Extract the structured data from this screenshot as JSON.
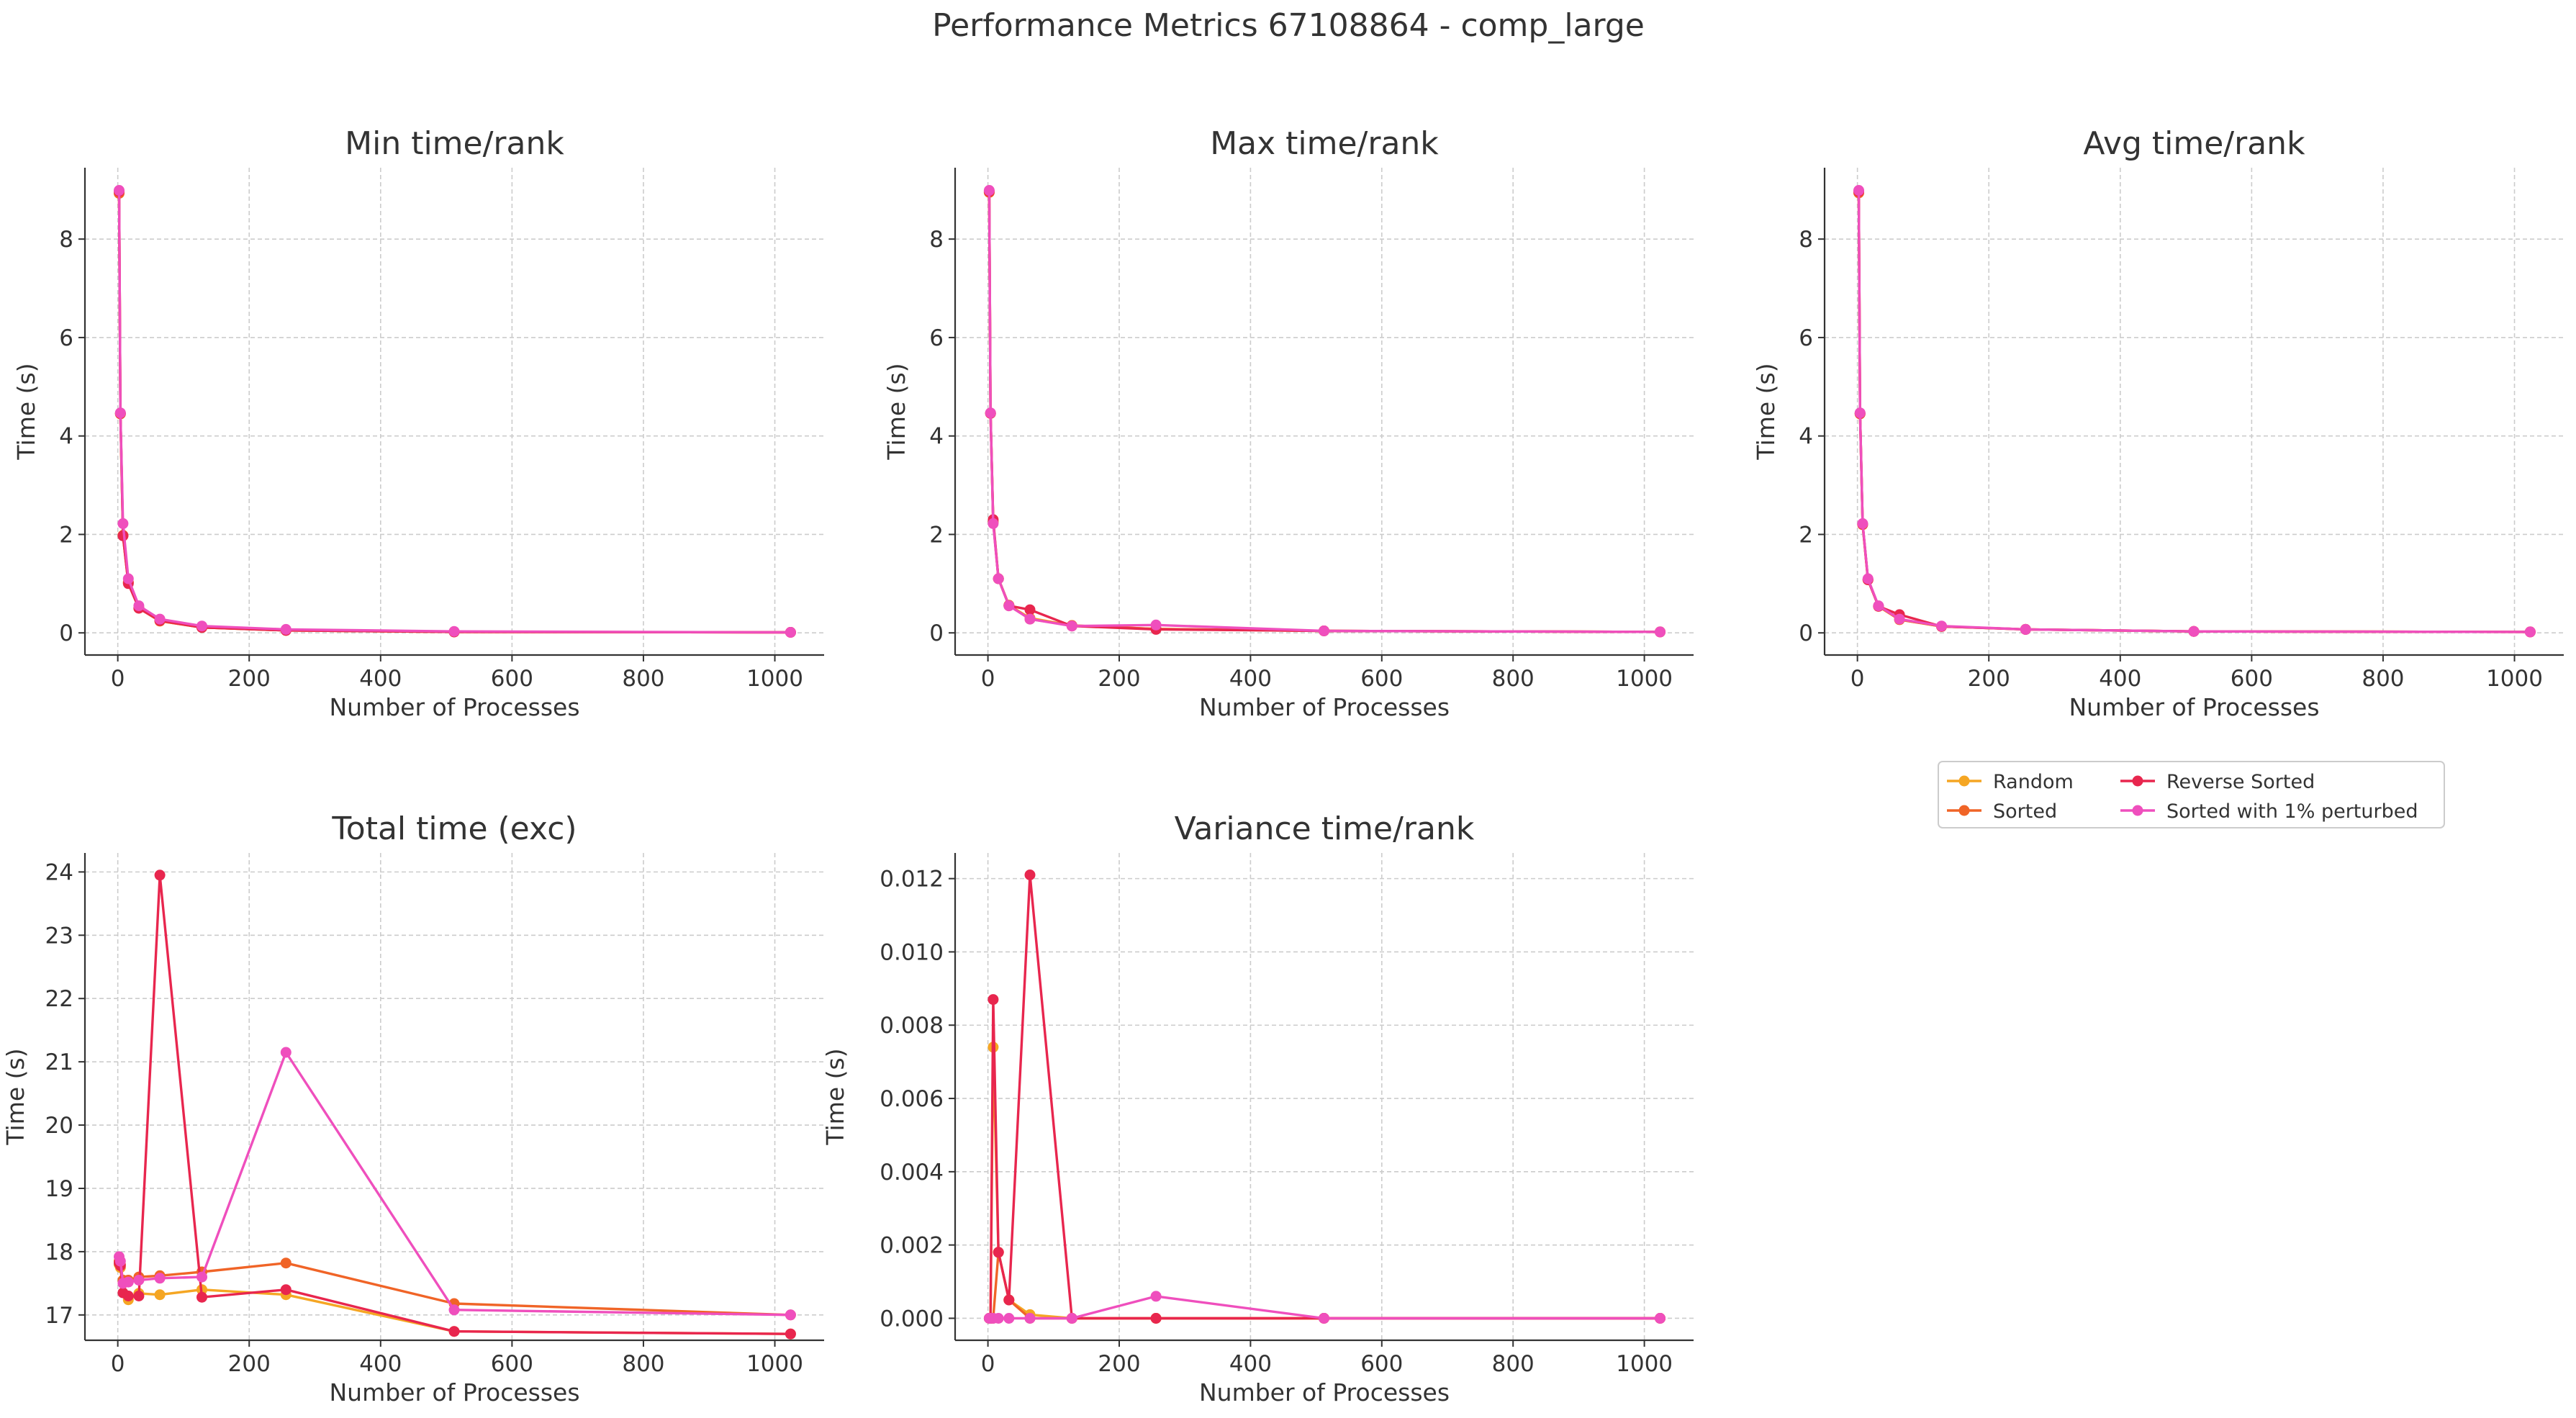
{
  "title": "Performance Metrics 67108864 - comp_large",
  "colors": {
    "Random": "#f5a623",
    "Sorted": "#f06427",
    "Reverse Sorted": "#e8264e",
    "Sorted with 1% perturbed": "#ef4fbd"
  },
  "legend": {
    "position": "right, below the top-right panel",
    "entries": [
      "Random",
      "Sorted",
      "Reverse Sorted",
      "Sorted with 1% perturbed"
    ]
  },
  "chart_data": [
    {
      "type": "line",
      "title": "Min time/rank",
      "xlabel": "Number of Processes",
      "ylabel": "Time (s)",
      "xlim": [
        -50,
        1075
      ],
      "ylim": [
        -0.45,
        9.45
      ],
      "xticks": [
        0,
        200,
        400,
        600,
        800,
        1000
      ],
      "yticks": [
        0,
        2,
        4,
        6,
        8
      ],
      "ytick_labels": [
        "0",
        "2",
        "4",
        "6",
        "8"
      ],
      "grid": true,
      "x": [
        2,
        4,
        8,
        16,
        32,
        64,
        128,
        256,
        512,
        1024
      ],
      "series": [
        {
          "name": "Random",
          "values": [
            8.95,
            4.45,
            1.98,
            1.02,
            0.51,
            0.24,
            0.11,
            0.05,
            0.02,
            0.01
          ]
        },
        {
          "name": "Sorted",
          "values": [
            8.93,
            4.45,
            1.98,
            1.03,
            0.5,
            0.24,
            0.11,
            0.05,
            0.02,
            0.01
          ]
        },
        {
          "name": "Reverse Sorted",
          "values": [
            8.97,
            4.46,
            1.97,
            1.0,
            0.5,
            0.25,
            0.11,
            0.05,
            0.02,
            0.01
          ]
        },
        {
          "name": "Sorted with 1% perturbed",
          "values": [
            8.99,
            4.47,
            2.22,
            1.1,
            0.55,
            0.28,
            0.14,
            0.07,
            0.03,
            0.01
          ]
        }
      ]
    },
    {
      "type": "line",
      "title": "Max time/rank",
      "xlabel": "Number of Processes",
      "ylabel": "Time (s)",
      "xlim": [
        -50,
        1075
      ],
      "ylim": [
        -0.45,
        9.45
      ],
      "xticks": [
        0,
        200,
        400,
        600,
        800,
        1000
      ],
      "yticks": [
        0,
        2,
        4,
        6,
        8
      ],
      "ytick_labels": [
        "0",
        "2",
        "4",
        "6",
        "8"
      ],
      "grid": true,
      "x": [
        2,
        4,
        8,
        16,
        32,
        64,
        128,
        256,
        512,
        1024
      ],
      "series": [
        {
          "name": "Random",
          "values": [
            8.95,
            4.46,
            2.25,
            1.1,
            0.56,
            0.3,
            0.15,
            0.08,
            0.04,
            0.02
          ]
        },
        {
          "name": "Sorted",
          "values": [
            8.95,
            4.46,
            2.26,
            1.1,
            0.56,
            0.28,
            0.15,
            0.08,
            0.04,
            0.02
          ]
        },
        {
          "name": "Reverse Sorted",
          "values": [
            8.97,
            4.46,
            2.3,
            1.1,
            0.55,
            0.47,
            0.14,
            0.07,
            0.04,
            0.02
          ]
        },
        {
          "name": "Sorted with 1% perturbed",
          "values": [
            8.99,
            4.47,
            2.22,
            1.1,
            0.55,
            0.28,
            0.14,
            0.16,
            0.04,
            0.02
          ]
        }
      ]
    },
    {
      "type": "line",
      "title": "Avg time/rank",
      "xlabel": "Number of Processes",
      "ylabel": "Time (s)",
      "xlim": [
        -50,
        1075
      ],
      "ylim": [
        -0.45,
        9.45
      ],
      "xticks": [
        0,
        200,
        400,
        600,
        800,
        1000
      ],
      "yticks": [
        0,
        2,
        4,
        6,
        8
      ],
      "ytick_labels": [
        "0",
        "2",
        "4",
        "6",
        "8"
      ],
      "grid": true,
      "x": [
        2,
        4,
        8,
        16,
        32,
        64,
        128,
        256,
        512,
        1024
      ],
      "series": [
        {
          "name": "Random",
          "values": [
            8.95,
            4.45,
            2.2,
            1.08,
            0.54,
            0.27,
            0.13,
            0.07,
            0.03,
            0.02
          ]
        },
        {
          "name": "Sorted",
          "values": [
            8.94,
            4.45,
            2.2,
            1.08,
            0.54,
            0.27,
            0.13,
            0.07,
            0.03,
            0.02
          ]
        },
        {
          "name": "Reverse Sorted",
          "values": [
            8.97,
            4.46,
            2.21,
            1.08,
            0.54,
            0.37,
            0.13,
            0.07,
            0.03,
            0.02
          ]
        },
        {
          "name": "Sorted with 1% perturbed",
          "values": [
            8.99,
            4.47,
            2.22,
            1.1,
            0.55,
            0.28,
            0.14,
            0.07,
            0.03,
            0.02
          ]
        }
      ]
    },
    {
      "type": "line",
      "title": "Total time (exc)",
      "xlabel": "Number of Processes",
      "ylabel": "Time (s)",
      "xlim": [
        -50,
        1075
      ],
      "ylim": [
        16.6,
        24.3
      ],
      "xticks": [
        0,
        200,
        400,
        600,
        800,
        1000
      ],
      "yticks": [
        17,
        18,
        19,
        20,
        21,
        22,
        23,
        24
      ],
      "ytick_labels": [
        "17",
        "18",
        "19",
        "20",
        "21",
        "22",
        "23",
        "24"
      ],
      "grid": true,
      "x": [
        2,
        4,
        8,
        16,
        32,
        64,
        128,
        256,
        512,
        1024
      ],
      "series": [
        {
          "name": "Random",
          "values": [
            17.8,
            17.75,
            17.52,
            17.24,
            17.34,
            17.32,
            17.4,
            17.32,
            16.74,
            16.7
          ]
        },
        {
          "name": "Sorted",
          "values": [
            17.85,
            17.8,
            17.55,
            17.55,
            17.6,
            17.62,
            17.68,
            17.82,
            17.18,
            17.0
          ]
        },
        {
          "name": "Reverse Sorted",
          "values": [
            17.82,
            17.78,
            17.35,
            17.3,
            17.3,
            23.95,
            17.28,
            17.4,
            16.74,
            16.7
          ]
        },
        {
          "name": "Sorted with 1% perturbed",
          "values": [
            17.92,
            17.85,
            17.5,
            17.52,
            17.55,
            17.58,
            17.6,
            21.15,
            17.08,
            17.0
          ]
        }
      ]
    },
    {
      "type": "line",
      "title": "Variance time/rank",
      "xlabel": "Number of Processes",
      "ylabel": "Time (s)",
      "xlim": [
        -50,
        1075
      ],
      "ylim": [
        -0.0006,
        0.0127
      ],
      "xticks": [
        0,
        200,
        400,
        600,
        800,
        1000
      ],
      "yticks": [
        0,
        0.002,
        0.004,
        0.006,
        0.008,
        0.01,
        0.012
      ],
      "ytick_labels": [
        "0.000",
        "0.002",
        "0.004",
        "0.006",
        "0.008",
        "0.010",
        "0.012"
      ],
      "grid": true,
      "x": [
        2,
        4,
        8,
        16,
        32,
        64,
        128,
        256,
        512,
        1024
      ],
      "series": [
        {
          "name": "Random",
          "values": [
            0.0,
            0.0,
            0.0074,
            0.0018,
            0.0005,
            0.0001,
            0.0,
            0.0,
            0.0,
            0.0
          ]
        },
        {
          "name": "Sorted",
          "values": [
            0.0,
            0.0,
            0.0,
            0.0018,
            0.0005,
            0.0,
            0.0,
            0.0,
            0.0,
            0.0
          ]
        },
        {
          "name": "Reverse Sorted",
          "values": [
            0.0,
            0.0,
            0.0087,
            0.0018,
            0.0005,
            0.0121,
            0.0,
            0.0,
            0.0,
            0.0
          ]
        },
        {
          "name": "Sorted with 1% perturbed",
          "values": [
            0.0,
            0.0,
            0.0,
            0.0,
            0.0,
            0.0,
            0.0,
            0.0006,
            0.0,
            0.0
          ]
        }
      ]
    }
  ]
}
